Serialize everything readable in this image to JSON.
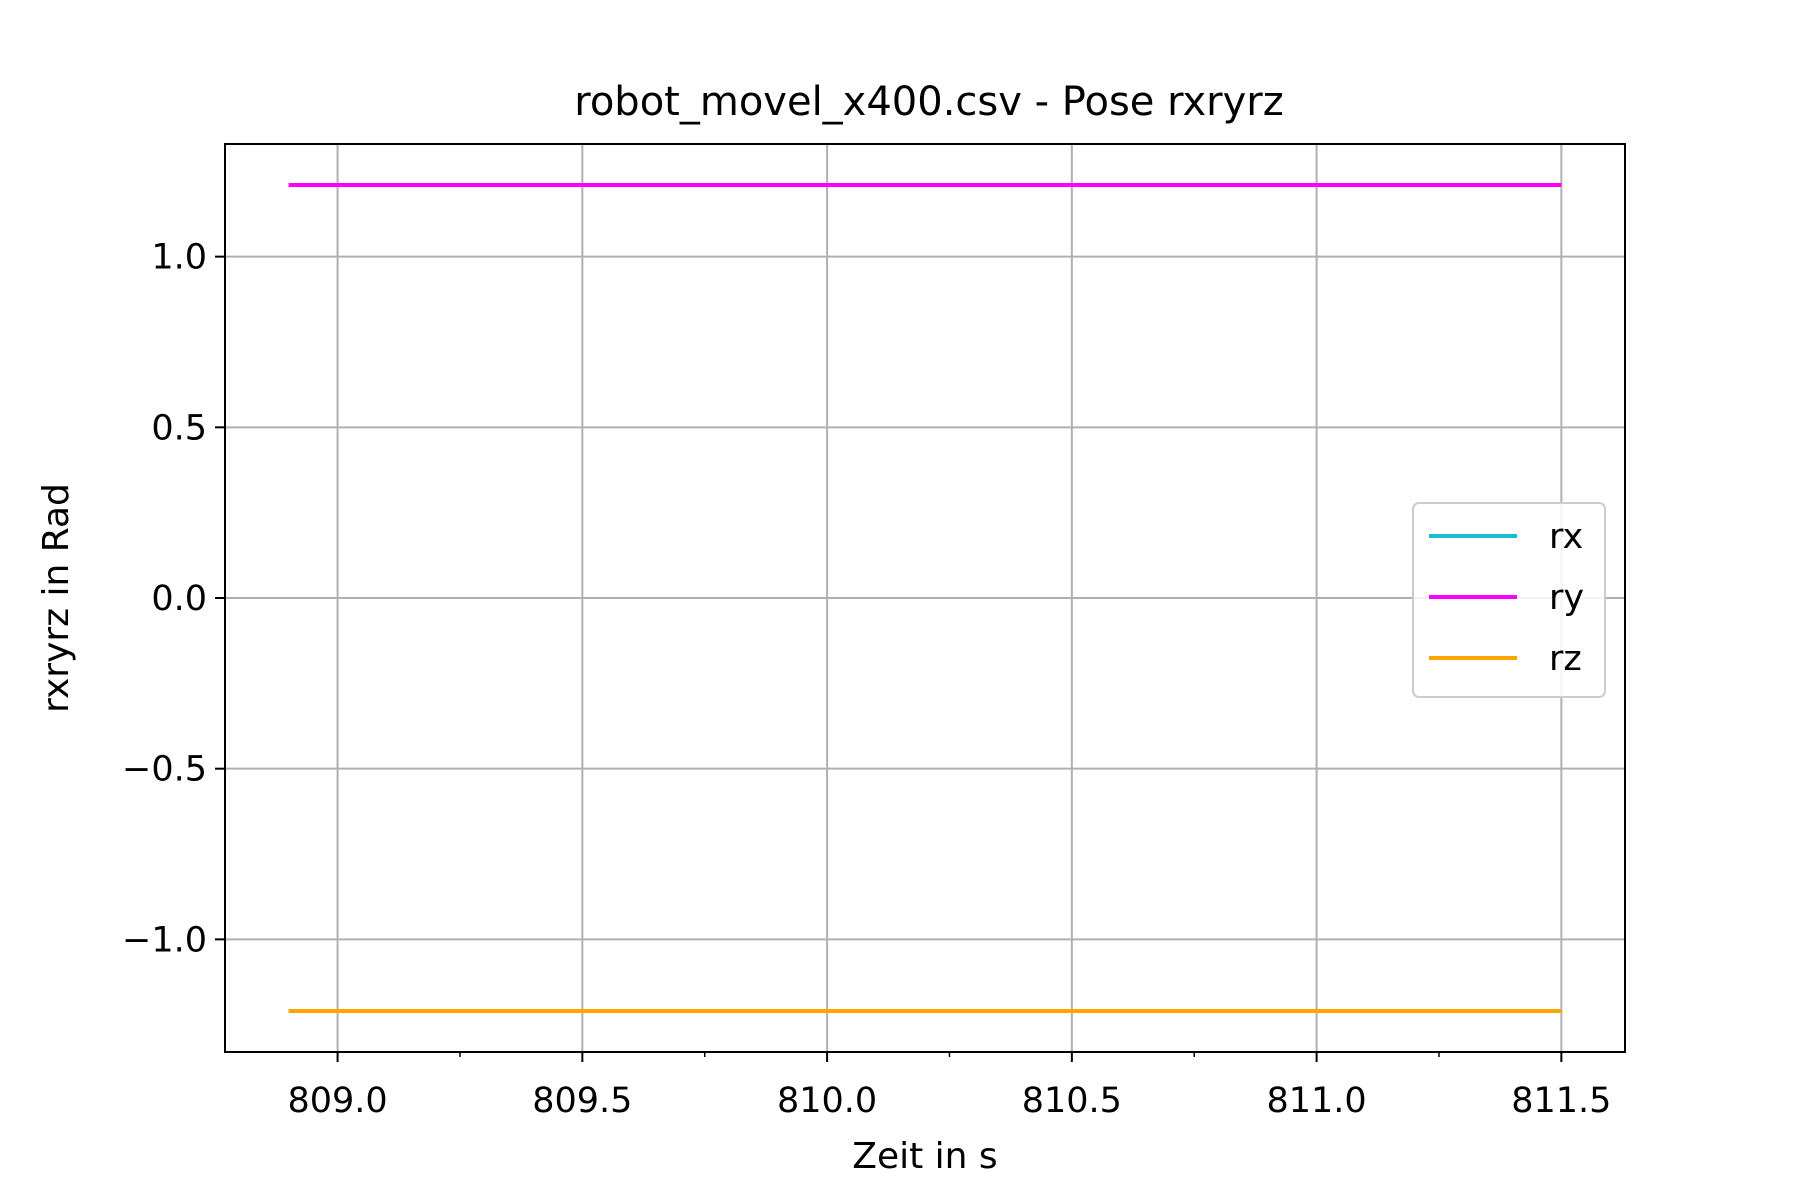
{
  "chart_data": {
    "type": "line",
    "title": "robot_movel_x400.csv - Pose rxryrz",
    "xlabel": "Zeit in s",
    "ylabel": "rxryrz in Rad",
    "xlim": [
      808.77,
      811.63
    ],
    "ylim": [
      -1.33,
      1.33
    ],
    "x_ticks": [
      809.0,
      809.5,
      810.0,
      810.5,
      811.0,
      811.5
    ],
    "x_tick_labels": [
      "809.0",
      "809.5",
      "810.0",
      "810.5",
      "811.0",
      "811.5"
    ],
    "y_ticks": [
      -1.0,
      -0.5,
      0.0,
      0.5,
      1.0
    ],
    "y_tick_labels": [
      "−1.0",
      "−0.5",
      "0.0",
      "0.5",
      "1.0"
    ],
    "grid": true,
    "legend_position": "center-right",
    "series": [
      {
        "name": "rx",
        "color": "#17becf",
        "x": [
          808.9,
          811.5
        ],
        "y": [
          -1.21,
          -1.21
        ]
      },
      {
        "name": "ry",
        "color": "#ff00ff",
        "x": [
          808.9,
          811.5
        ],
        "y": [
          1.21,
          1.21
        ]
      },
      {
        "name": "rz",
        "color": "#ffa500",
        "x": [
          808.9,
          811.5
        ],
        "y": [
          -1.21,
          -1.21
        ]
      }
    ]
  }
}
